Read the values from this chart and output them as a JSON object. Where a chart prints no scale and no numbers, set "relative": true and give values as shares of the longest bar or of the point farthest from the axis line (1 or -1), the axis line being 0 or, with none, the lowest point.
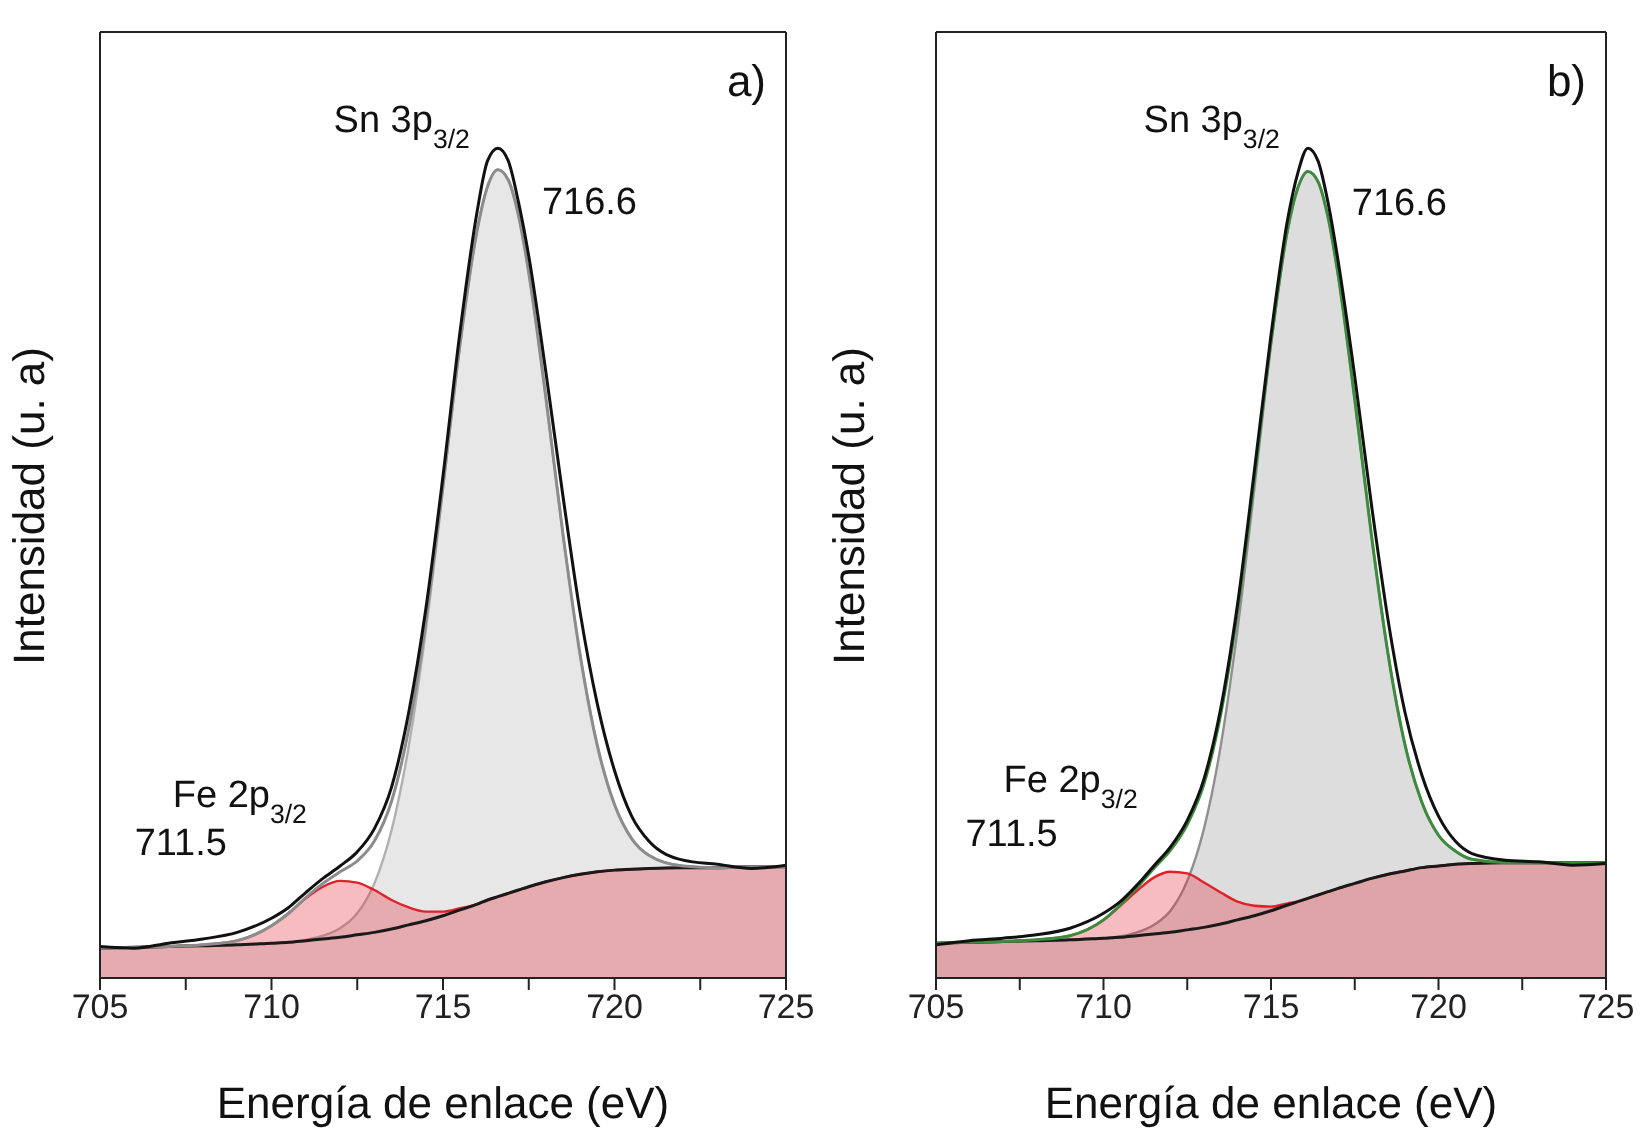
{
  "chart_data": [
    {
      "type": "line",
      "relative": true,
      "title": "a)",
      "xlabel": "Energía de enlace (eV)",
      "ylabel": "Intensidad (u. a)",
      "tick_labels": "x",
      "xlim": [
        705,
        725
      ],
      "xticks": [
        705,
        {
          "value": 707.5,
          "label": null
        },
        710,
        {
          "value": 712.5,
          "label": null
        },
        715,
        {
          "value": 717.5,
          "label": null
        },
        720,
        {
          "value": 722.5,
          "label": null
        },
        725
      ],
      "x": [
        705,
        706,
        707,
        708,
        709,
        710,
        710.5,
        711,
        711.5,
        712,
        712.5,
        713,
        713.5,
        714,
        714.5,
        715,
        715.5,
        716,
        716.3,
        716.6,
        716.9,
        717.2,
        717.5,
        718,
        718.5,
        719,
        719.5,
        720,
        720.5,
        721,
        722,
        723,
        724,
        725
      ],
      "series": [
        {
          "type": "area",
          "color": "#b0b0b0",
          "values": [
            0.036,
            0.037,
            0.038,
            0.039,
            0.04,
            0.042,
            0.043,
            0.046,
            0.051,
            0.06,
            0.078,
            0.114,
            0.178,
            0.279,
            0.419,
            0.589,
            0.763,
            0.902,
            0.954,
            0.974,
            0.962,
            0.919,
            0.85,
            0.699,
            0.534,
            0.389,
            0.28,
            0.209,
            0.168,
            0.148,
            0.135,
            0.133,
            0.134,
            0.134
          ]
        },
        {
          "type": "area",
          "color": "#e0202a",
          "values": [
            0.036,
            0.037,
            0.038,
            0.04,
            0.045,
            0.063,
            0.078,
            0.096,
            0.11,
            0.117,
            0.115,
            0.106,
            0.094,
            0.085,
            0.08,
            0.08,
            0.084,
            0.089,
            0.094,
            0.098,
            0.102,
            0.106,
            0.11,
            0.116,
            0.121,
            0.125,
            0.128,
            0.13,
            0.131,
            0.132,
            0.133,
            0.133,
            0.134,
            0.134
          ]
        },
        {
          "color": "#1a1a1a",
          "values": [
            0.036,
            0.037,
            0.038,
            0.039,
            0.04,
            0.042,
            0.043,
            0.045,
            0.047,
            0.049,
            0.052,
            0.055,
            0.059,
            0.064,
            0.069,
            0.075,
            0.082,
            0.089,
            0.094,
            0.098,
            0.102,
            0.106,
            0.11,
            0.116,
            0.121,
            0.125,
            0.128,
            0.13,
            0.131,
            0.132,
            0.133,
            0.133,
            0.134,
            0.134
          ]
        },
        {
          "color": "#8c8c8c",
          "values": [
            0.036,
            0.037,
            0.038,
            0.04,
            0.045,
            0.063,
            0.078,
            0.097,
            0.114,
            0.128,
            0.141,
            0.165,
            0.213,
            0.3,
            0.43,
            0.594,
            0.765,
            0.902,
            0.954,
            0.974,
            0.962,
            0.919,
            0.85,
            0.699,
            0.534,
            0.389,
            0.28,
            0.209,
            0.168,
            0.148,
            0.135,
            0.133,
            0.134,
            0.134
          ]
        },
        {
          "color": "#111111",
          "values": [
            0.038,
            0.036,
            0.042,
            0.047,
            0.055,
            0.072,
            0.085,
            0.103,
            0.12,
            0.135,
            0.152,
            0.18,
            0.23,
            0.32,
            0.445,
            0.605,
            0.78,
            0.925,
            0.985,
            1.0,
            0.985,
            0.935,
            0.87,
            0.73,
            0.58,
            0.44,
            0.33,
            0.25,
            0.195,
            0.165,
            0.142,
            0.137,
            0.132,
            0.136
          ]
        }
      ],
      "annotations": [
        {
          "text": "Sn 3p$_{3/2}$",
          "x": 716.6,
          "y": 1.0
        },
        {
          "text": "716.6",
          "x": 716.6,
          "y": 0.974
        },
        {
          "text": "Fe 2p$_{3/2}$",
          "x": 711.5,
          "y": 0.114
        },
        {
          "text": "711.5",
          "x": 711.5,
          "y": 0.11
        }
      ]
    },
    {
      "type": "line",
      "relative": true,
      "title": "b)",
      "xlabel": "Energía de enlace (eV)",
      "ylabel": "Intensidad (u. a)",
      "tick_labels": "x",
      "xlim": [
        705,
        725
      ],
      "xticks": [
        705,
        {
          "value": 707.5,
          "label": null
        },
        710,
        {
          "value": 712.5,
          "label": null
        },
        715,
        {
          "value": 717.5,
          "label": null
        },
        720,
        {
          "value": 722.5,
          "label": null
        },
        725
      ],
      "x": [
        705,
        706,
        707,
        708,
        709,
        710,
        710.5,
        711,
        711.5,
        712,
        712.5,
        713,
        713.5,
        714,
        714.5,
        715,
        715.5,
        715.8,
        716.1,
        716.4,
        716.7,
        717,
        717.5,
        718,
        718.5,
        719,
        719.5,
        720,
        720.5,
        721,
        722,
        723,
        724,
        725
      ],
      "series": [
        {
          "type": "area",
          "color": "#909090",
          "values": [
            0.042,
            0.043,
            0.044,
            0.045,
            0.046,
            0.048,
            0.05,
            0.055,
            0.064,
            0.081,
            0.117,
            0.18,
            0.28,
            0.42,
            0.589,
            0.762,
            0.901,
            0.952,
            0.972,
            0.96,
            0.917,
            0.848,
            0.697,
            0.533,
            0.389,
            0.281,
            0.212,
            0.172,
            0.153,
            0.143,
            0.139,
            0.139,
            0.139,
            0.139
          ]
        },
        {
          "type": "area",
          "color": "#e0202a",
          "values": [
            0.042,
            0.043,
            0.044,
            0.046,
            0.051,
            0.07,
            0.087,
            0.105,
            0.121,
            0.128,
            0.126,
            0.115,
            0.103,
            0.092,
            0.087,
            0.086,
            0.09,
            0.092,
            0.096,
            0.1,
            0.104,
            0.108,
            0.114,
            0.12,
            0.125,
            0.129,
            0.133,
            0.135,
            0.137,
            0.138,
            0.139,
            0.139,
            0.139,
            0.139
          ]
        },
        {
          "color": "#1a1a1a",
          "values": [
            0.042,
            0.043,
            0.044,
            0.045,
            0.046,
            0.048,
            0.049,
            0.051,
            0.053,
            0.055,
            0.058,
            0.061,
            0.065,
            0.07,
            0.075,
            0.081,
            0.088,
            0.092,
            0.096,
            0.1,
            0.104,
            0.108,
            0.114,
            0.12,
            0.125,
            0.129,
            0.133,
            0.135,
            0.137,
            0.138,
            0.139,
            0.139,
            0.139,
            0.139
          ]
        },
        {
          "color": "#3d8b3d",
          "values": [
            0.042,
            0.043,
            0.044,
            0.046,
            0.051,
            0.07,
            0.088,
            0.109,
            0.132,
            0.154,
            0.185,
            0.234,
            0.318,
            0.442,
            0.601,
            0.767,
            0.903,
            0.952,
            0.972,
            0.96,
            0.917,
            0.848,
            0.697,
            0.533,
            0.389,
            0.281,
            0.212,
            0.172,
            0.153,
            0.143,
            0.139,
            0.139,
            0.139,
            0.139
          ]
        },
        {
          "color": "#111111",
          "values": [
            0.04,
            0.045,
            0.048,
            0.052,
            0.06,
            0.078,
            0.092,
            0.112,
            0.135,
            0.158,
            0.19,
            0.24,
            0.325,
            0.45,
            0.61,
            0.775,
            0.915,
            0.97,
            1.0,
            0.985,
            0.935,
            0.865,
            0.725,
            0.57,
            0.43,
            0.32,
            0.245,
            0.195,
            0.165,
            0.15,
            0.142,
            0.14,
            0.136,
            0.138
          ]
        }
      ],
      "annotations": [
        {
          "text": "Sn 3p$_{3/2}$",
          "x": 716.1,
          "y": 1.0
        },
        {
          "text": "716.6",
          "x": 716.1,
          "y": 0.972
        },
        {
          "text": "Fe 2p$_{3/2}$",
          "x": 711.5,
          "y": 0.132
        },
        {
          "text": "711.5",
          "x": 711.5,
          "y": 0.121
        }
      ]
    }
  ]
}
